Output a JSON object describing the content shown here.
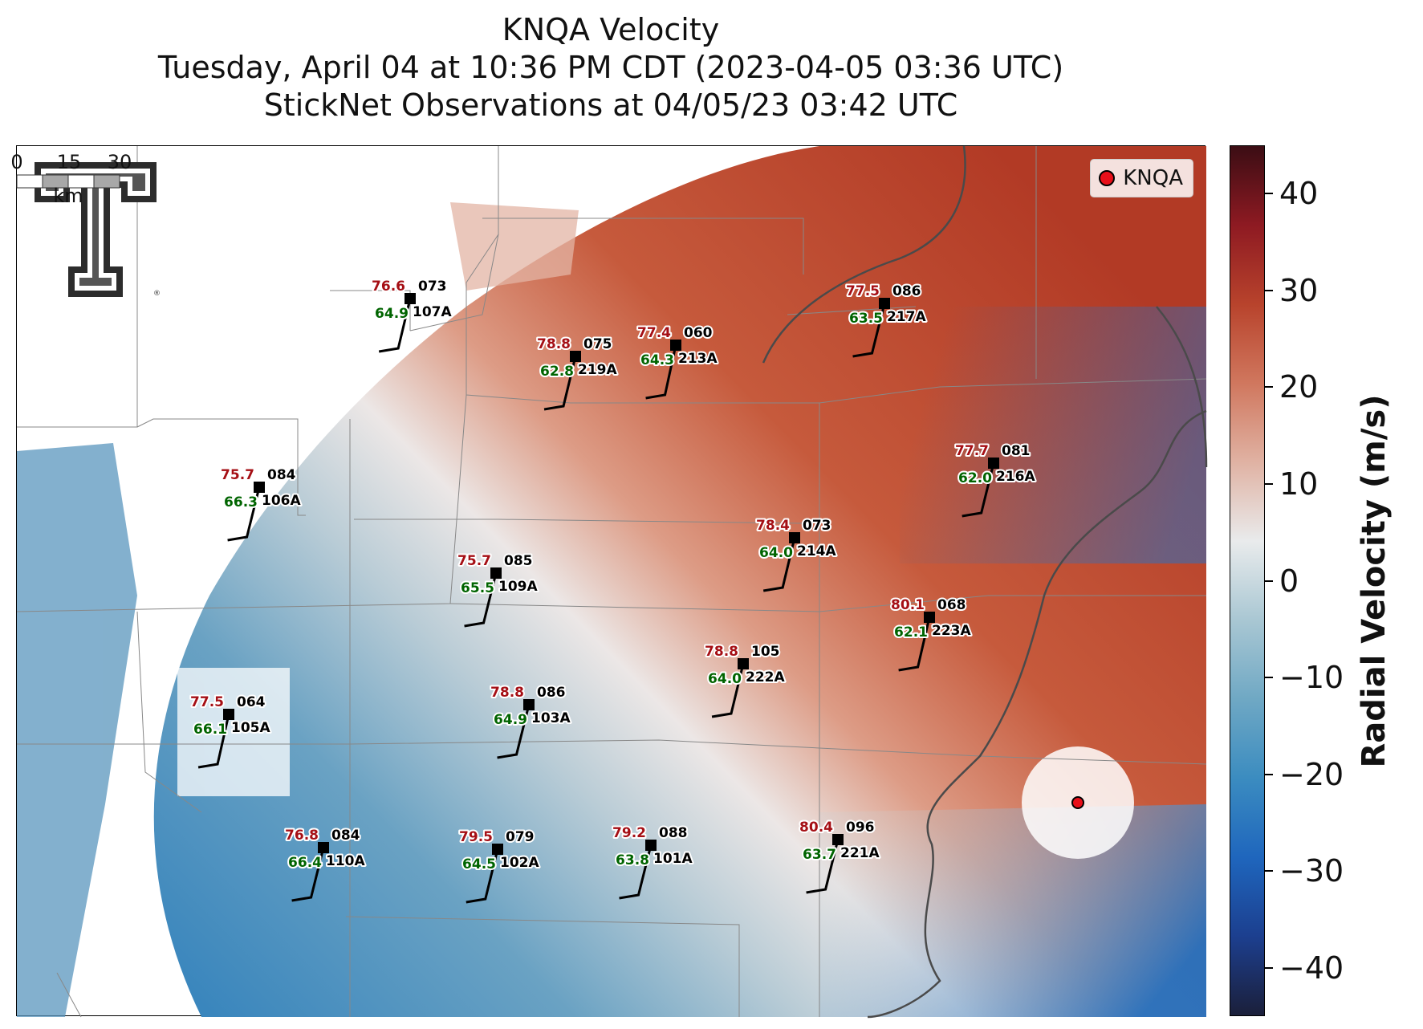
{
  "title": {
    "line1": "KNQA Velocity",
    "line2": "Tuesday, April 04 at 10:36 PM CDT (2023-04-05 03:36 UTC)",
    "line3": "StickNet Observations at 04/05/23 03:42 UTC"
  },
  "legend": {
    "label": "KNQA",
    "color": "#e8101a"
  },
  "logo": {
    "name": "Texas Tech Double T",
    "mark": "®"
  },
  "scalebar": {
    "ticks": [
      "0",
      "15",
      "30"
    ],
    "unit": "km"
  },
  "colorbar": {
    "label": "Radial Velocity (m/s)",
    "min": -45,
    "max": 45,
    "ticks": [
      "40",
      "30",
      "20",
      "10",
      "0",
      "−10",
      "−20",
      "−30",
      "−40"
    ],
    "tick_values": [
      40,
      30,
      20,
      10,
      0,
      -10,
      -20,
      -30,
      -40
    ],
    "colors": [
      "#1b1f3a",
      "#1c3f8f",
      "#1f66bd",
      "#3b8cc0",
      "#6fa8c4",
      "#a9c7d3",
      "#e9ebec",
      "#e0b2a3",
      "#d0775e",
      "#b8432c",
      "#8e1a22",
      "#3b0d14"
    ]
  },
  "radar": {
    "name": "KNQA",
    "color": "#e8101a"
  },
  "stations": [
    {
      "id": "107A",
      "temp": "76.6",
      "dew": "64.9",
      "dir": "073"
    },
    {
      "id": "219A",
      "temp": "78.8",
      "dew": "62.8",
      "dir": "075"
    },
    {
      "id": "213A",
      "temp": "77.4",
      "dew": "64.3",
      "dir": "060"
    },
    {
      "id": "217A",
      "temp": "77.5",
      "dew": "63.5",
      "dir": "086"
    },
    {
      "id": "216A",
      "temp": "77.7",
      "dew": "62.0",
      "dir": "081"
    },
    {
      "id": "106A",
      "temp": "75.7",
      "dew": "66.3",
      "dir": "084"
    },
    {
      "id": "214A",
      "temp": "78.4",
      "dew": "64.0",
      "dir": "073"
    },
    {
      "id": "109A",
      "temp": "75.7",
      "dew": "65.5",
      "dir": "085"
    },
    {
      "id": "223A",
      "temp": "80.1",
      "dew": "62.1",
      "dir": "068"
    },
    {
      "id": "222A",
      "temp": "78.8",
      "dew": "64.0",
      "dir": "105"
    },
    {
      "id": "105A",
      "temp": "77.5",
      "dew": "66.1",
      "dir": "064"
    },
    {
      "id": "103A",
      "temp": "78.8",
      "dew": "64.9",
      "dir": "086"
    },
    {
      "id": "110A",
      "temp": "76.8",
      "dew": "66.4",
      "dir": "084"
    },
    {
      "id": "102A",
      "temp": "79.5",
      "dew": "64.5",
      "dir": "079"
    },
    {
      "id": "101A",
      "temp": "79.2",
      "dew": "63.8",
      "dir": "088"
    },
    {
      "id": "221A",
      "temp": "80.4",
      "dew": "63.7",
      "dir": "096"
    }
  ]
}
